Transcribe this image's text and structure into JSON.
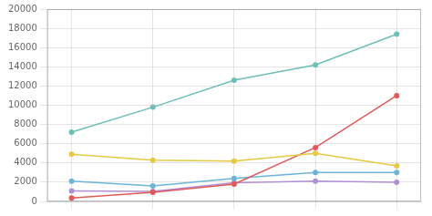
{
  "chart_data": {
    "type": "line",
    "x": [
      1,
      2,
      3,
      4,
      5
    ],
    "series": [
      {
        "color": "#6dbfb8",
        "values": [
          7200,
          9800,
          12600,
          14200,
          17400
        ]
      },
      {
        "color": "#e8c840",
        "values": [
          4900,
          4300,
          4200,
          5000,
          3700
        ]
      },
      {
        "color": "#e05a5a",
        "values": [
          350,
          950,
          1800,
          5600,
          11000
        ]
      },
      {
        "color": "#6bb5d6",
        "values": [
          2100,
          1600,
          2400,
          3000,
          3000
        ]
      },
      {
        "color": "#b08fd6",
        "values": [
          1100,
          1050,
          1950,
          2100,
          2000
        ]
      }
    ],
    "xlim": [
      0.7,
      5.3
    ],
    "xticks": [
      1,
      2,
      3,
      4,
      5
    ],
    "ylim": [
      0,
      20000
    ],
    "yticks": [
      0,
      2000,
      4000,
      6000,
      8000,
      10000,
      12000,
      14000,
      16000,
      18000,
      20000
    ],
    "marker": "circle",
    "grid": true,
    "tick_labels": "y"
  }
}
